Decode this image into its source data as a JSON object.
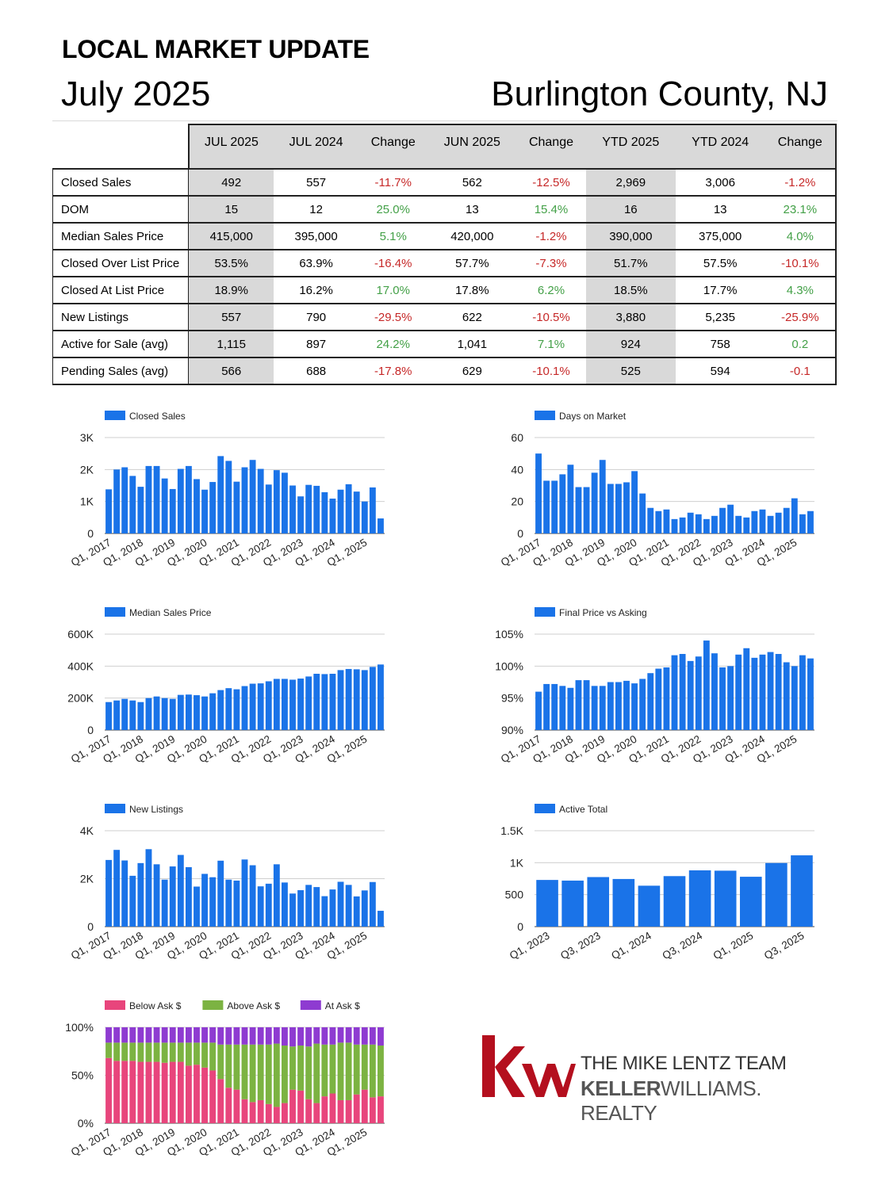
{
  "header": {
    "title": "LOCAL MARKET UPDATE",
    "date": "July 2025",
    "location": "Burlington County, NJ"
  },
  "table": {
    "columns": [
      "JUL 2025",
      "JUL 2024",
      "Change",
      "JUN 2025",
      "Change",
      "YTD 2025",
      "YTD 2024",
      "Change"
    ],
    "rows": [
      {
        "label": "Closed Sales",
        "cells": [
          "492",
          "557",
          "-11.7%",
          "562",
          "-12.5%",
          "2,969",
          "3,006",
          "-1.2%"
        ],
        "tone": [
          "",
          "",
          "neg",
          "",
          "neg",
          "",
          "",
          "neg"
        ]
      },
      {
        "label": "DOM",
        "cells": [
          "15",
          "12",
          "25.0%",
          "13",
          "15.4%",
          "16",
          "13",
          "23.1%"
        ],
        "tone": [
          "",
          "",
          "pos",
          "",
          "pos",
          "",
          "",
          "pos"
        ]
      },
      {
        "label": "Median Sales Price",
        "cells": [
          "415,000",
          "395,000",
          "5.1%",
          "420,000",
          "-1.2%",
          "390,000",
          "375,000",
          "4.0%"
        ],
        "tone": [
          "",
          "",
          "pos",
          "",
          "neg",
          "",
          "",
          "pos"
        ]
      },
      {
        "label": "Closed Over List Price",
        "cells": [
          "53.5%",
          "63.9%",
          "-16.4%",
          "57.7%",
          "-7.3%",
          "51.7%",
          "57.5%",
          "-10.1%"
        ],
        "tone": [
          "",
          "",
          "neg",
          "",
          "neg",
          "",
          "",
          "neg"
        ]
      },
      {
        "label": "Closed At List Price",
        "cells": [
          "18.9%",
          "16.2%",
          "17.0%",
          "17.8%",
          "6.2%",
          "18.5%",
          "17.7%",
          "4.3%"
        ],
        "tone": [
          "",
          "",
          "pos",
          "",
          "pos",
          "",
          "",
          "pos"
        ]
      },
      {
        "label": "New Listings",
        "cells": [
          "557",
          "790",
          "-29.5%",
          "622",
          "-10.5%",
          "3,880",
          "5,235",
          "-25.9%"
        ],
        "tone": [
          "",
          "",
          "neg",
          "",
          "neg",
          "",
          "",
          "neg"
        ]
      },
      {
        "label": "Active for Sale (avg)",
        "cells": [
          "1,115",
          "897",
          "24.2%",
          "1,041",
          "7.1%",
          "924",
          "758",
          "0.2"
        ],
        "tone": [
          "",
          "",
          "pos",
          "",
          "pos",
          "",
          "",
          "pos"
        ]
      },
      {
        "label": "Pending Sales (avg)",
        "cells": [
          "566",
          "688",
          "-17.8%",
          "629",
          "-10.1%",
          "525",
          "594",
          "-0.1"
        ],
        "tone": [
          "",
          "",
          "neg",
          "",
          "neg",
          "",
          "",
          "neg"
        ]
      }
    ]
  },
  "colors": {
    "bar": "#1a73e8",
    "below": "#e8457c",
    "above": "#7cb342",
    "at": "#8e3bd1",
    "neg": "#c62828",
    "pos": "#43a047"
  },
  "chart_data": [
    {
      "id": "closed-sales",
      "type": "bar",
      "legend": [
        "Closed Sales"
      ],
      "ylim": [
        0,
        3000
      ],
      "yticks": [
        0,
        1000,
        2000,
        3000
      ],
      "ytick_labels": [
        "0",
        "1K",
        "2K",
        "3K"
      ],
      "xtick_labels": [
        "Q1, 2017",
        "Q1, 2018",
        "Q1, 2019",
        "Q1, 2020",
        "Q1, 2021",
        "Q1, 2022",
        "Q1, 2023",
        "Q1, 2024",
        "Q1, 2025"
      ],
      "values": [
        1380,
        2000,
        2070,
        1800,
        1460,
        2110,
        2110,
        1720,
        1390,
        2020,
        2110,
        1700,
        1370,
        1610,
        2420,
        2270,
        1620,
        2070,
        2300,
        2020,
        1530,
        1980,
        1900,
        1500,
        1160,
        1520,
        1490,
        1290,
        1090,
        1370,
        1540,
        1310,
        1000,
        1440,
        470
      ]
    },
    {
      "id": "days-on-market",
      "type": "bar",
      "legend": [
        "Days on Market"
      ],
      "ylim": [
        0,
        60
      ],
      "yticks": [
        0,
        20,
        40,
        60
      ],
      "ytick_labels": [
        "0",
        "20",
        "40",
        "60"
      ],
      "xtick_labels": [
        "Q1, 2017",
        "Q1, 2018",
        "Q1, 2019",
        "Q1, 2020",
        "Q1, 2021",
        "Q1, 2022",
        "Q1, 2023",
        "Q1, 2024",
        "Q1, 2025"
      ],
      "values": [
        50,
        33,
        33,
        37,
        43,
        29,
        29,
        38,
        46,
        31,
        31,
        32,
        39,
        25,
        16,
        14,
        15,
        9,
        10,
        13,
        12,
        9,
        11,
        16,
        18,
        11,
        10,
        14,
        15,
        11,
        13,
        16,
        22,
        12,
        14
      ]
    },
    {
      "id": "median-sales-price",
      "type": "bar",
      "legend": [
        "Median Sales Price"
      ],
      "ylim": [
        0,
        600000
      ],
      "yticks": [
        0,
        200000,
        400000,
        600000
      ],
      "ytick_labels": [
        "0",
        "200K",
        "400K",
        "600K"
      ],
      "xtick_labels": [
        "Q1, 2017",
        "Q1, 2018",
        "Q1, 2019",
        "Q1, 2020",
        "Q1, 2021",
        "Q1, 2022",
        "Q1, 2023",
        "Q1, 2024",
        "Q1, 2025"
      ],
      "values": [
        175000,
        185000,
        195000,
        185000,
        175000,
        200000,
        210000,
        200000,
        195000,
        220000,
        222000,
        218000,
        210000,
        230000,
        250000,
        262000,
        255000,
        275000,
        290000,
        292000,
        305000,
        320000,
        320000,
        315000,
        322000,
        335000,
        352000,
        350000,
        352000,
        375000,
        382000,
        380000,
        375000,
        395000,
        410000
      ]
    },
    {
      "id": "final-price-vs-asking",
      "type": "bar",
      "legend": [
        "Final Price vs Asking"
      ],
      "ylim": [
        90,
        105
      ],
      "yticks": [
        90,
        95,
        100,
        105
      ],
      "ytick_labels": [
        "90%",
        "95%",
        "100%",
        "105%"
      ],
      "xtick_labels": [
        "Q1, 2017",
        "Q1, 2018",
        "Q1, 2019",
        "Q1, 2020",
        "Q1, 2021",
        "Q1, 2022",
        "Q1, 2023",
        "Q1, 2024",
        "Q1, 2025"
      ],
      "values": [
        96.0,
        97.2,
        97.2,
        96.9,
        96.6,
        97.8,
        97.8,
        96.9,
        96.9,
        97.5,
        97.5,
        97.7,
        97.3,
        98.0,
        98.9,
        99.6,
        99.8,
        101.7,
        101.9,
        100.8,
        101.5,
        104.0,
        102.0,
        99.8,
        100.0,
        101.8,
        102.8,
        101.3,
        101.8,
        102.2,
        101.9,
        100.6,
        100.0,
        101.7,
        101.2
      ]
    },
    {
      "id": "new-listings",
      "type": "bar",
      "legend": [
        "New Listings"
      ],
      "ylim": [
        0,
        4000
      ],
      "yticks": [
        0,
        2000,
        4000
      ],
      "ytick_labels": [
        "0",
        "2K",
        "4K"
      ],
      "xtick_labels": [
        "Q1, 2017",
        "Q1, 2018",
        "Q1, 2019",
        "Q1, 2020",
        "Q1, 2021",
        "Q1, 2022",
        "Q1, 2023",
        "Q1, 2024",
        "Q1, 2025"
      ],
      "values": [
        2780,
        3200,
        2760,
        2120,
        2650,
        3230,
        2600,
        1960,
        2510,
        2990,
        2480,
        1670,
        2200,
        2060,
        2750,
        1960,
        1920,
        2800,
        2560,
        1680,
        1790,
        2600,
        1840,
        1380,
        1520,
        1740,
        1650,
        1270,
        1550,
        1870,
        1740,
        1260,
        1510,
        1860,
        660
      ]
    },
    {
      "id": "active-total",
      "type": "bar",
      "legend": [
        "Active Total"
      ],
      "ylim": [
        0,
        1500
      ],
      "yticks": [
        0,
        500,
        1000,
        1500
      ],
      "ytick_labels": [
        "0",
        "500",
        "1K",
        "1.5K"
      ],
      "xtick_labels": [
        "Q1, 2023",
        "Q3, 2023",
        "Q1, 2024",
        "Q3, 2024",
        "Q1, 2025",
        "Q3, 2025"
      ],
      "categories": [
        "Q1, 2023",
        "Q2, 2023",
        "Q3, 2023",
        "Q4, 2023",
        "Q1, 2024",
        "Q2, 2024",
        "Q3, 2024",
        "Q4, 2024",
        "Q1, 2025",
        "Q2, 2025",
        "Q3, 2025"
      ],
      "values": [
        730,
        720,
        775,
        745,
        640,
        790,
        880,
        875,
        780,
        995,
        1115
      ]
    },
    {
      "id": "ask-breakdown",
      "type": "bar",
      "stacked": true,
      "legend": [
        "Below Ask $",
        "Above Ask $",
        "At Ask $"
      ],
      "ylim": [
        0,
        100
      ],
      "yticks": [
        0,
        50,
        100
      ],
      "ytick_labels": [
        "0%",
        "50%",
        "100%"
      ],
      "xtick_labels": [
        "Q1, 2017",
        "Q1, 2018",
        "Q1, 2019",
        "Q1, 2020",
        "Q1, 2021",
        "Q1, 2022",
        "Q1, 2023",
        "Q1, 2024",
        "Q1, 2025"
      ],
      "series": [
        {
          "name": "Below Ask $",
          "values": [
            68,
            65,
            65,
            65,
            64,
            64,
            64,
            63,
            64,
            64,
            60,
            61,
            58,
            55,
            46,
            37,
            35,
            25,
            22,
            24,
            20,
            17,
            21,
            35,
            34,
            25,
            21,
            28,
            31,
            24,
            24,
            30,
            35,
            27,
            28
          ]
        },
        {
          "name": "Above Ask $",
          "values": [
            16,
            19,
            19,
            19,
            20,
            20,
            20,
            21,
            20,
            20,
            24,
            23,
            26,
            29,
            36,
            45,
            47,
            57,
            60,
            58,
            62,
            66,
            60,
            45,
            47,
            55,
            62,
            54,
            51,
            60,
            60,
            52,
            47,
            55,
            53
          ]
        },
        {
          "name": "At Ask $",
          "values": [
            16,
            16,
            16,
            16,
            16,
            16,
            16,
            16,
            16,
            16,
            16,
            16,
            16,
            16,
            18,
            18,
            18,
            18,
            18,
            18,
            18,
            17,
            19,
            20,
            19,
            20,
            17,
            18,
            18,
            16,
            16,
            18,
            18,
            18,
            19
          ]
        }
      ]
    }
  ],
  "logo": {
    "mark": "kw",
    "team": "THE MIKE LENTZ TEAM",
    "company_bold": "KELLER",
    "company_rest": "WILLIAMS. REALTY"
  }
}
